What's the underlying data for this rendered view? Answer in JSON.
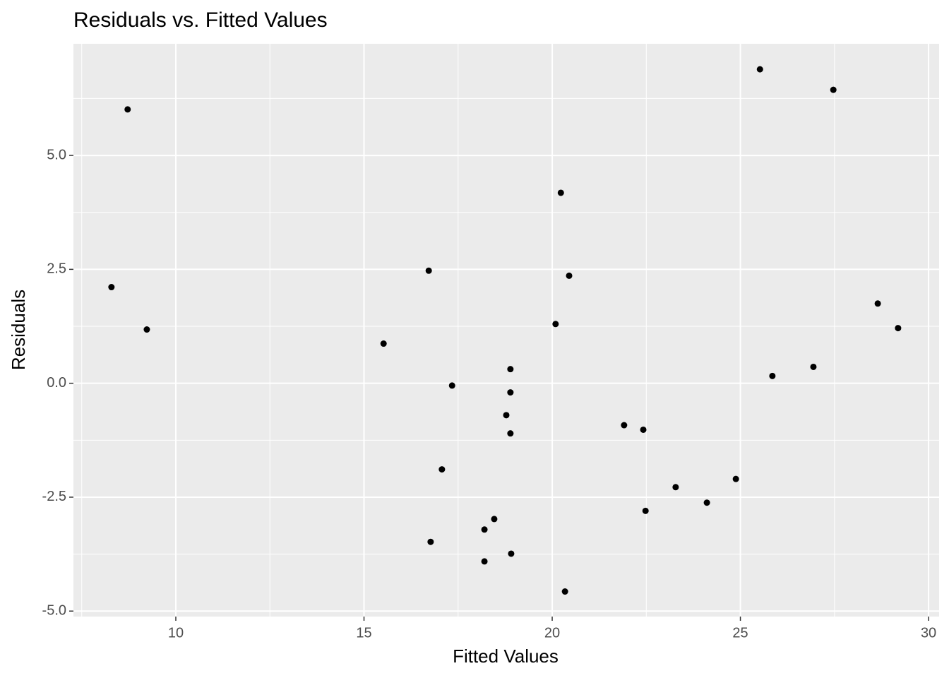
{
  "chart_data": {
    "type": "scatter",
    "title": "Residuals vs. Fitted Values",
    "x_label": "Fitted Values",
    "y_label": "Residuals",
    "color": "#000000",
    "grid": true,
    "xlim": [
      7.28,
      30.28
    ],
    "ylim": [
      -5.12,
      7.45
    ],
    "xticks": [
      10,
      15,
      20,
      25,
      30
    ],
    "yticks": [
      {
        "value": -5,
        "label": "-5.0"
      },
      -2.5,
      {
        "value": 0,
        "label": "0.0"
      },
      2.5,
      {
        "value": 5,
        "label": "5.0"
      }
    ],
    "x": [
      8.29,
      8.72,
      9.23,
      15.52,
      16.72,
      17.34,
      17.07,
      16.77,
      18.2,
      18.2,
      18.46,
      18.78,
      18.89,
      18.89,
      18.89,
      18.91,
      20.09,
      20.23,
      20.45,
      20.34,
      21.91,
      22.42,
      22.48,
      23.28,
      24.11,
      24.88,
      25.52,
      25.85,
      26.94,
      27.47,
      28.65,
      29.19
    ],
    "values": [
      2.11,
      6.01,
      1.18,
      0.87,
      2.47,
      -0.05,
      -1.89,
      -3.48,
      -3.21,
      -3.91,
      -2.98,
      -0.7,
      0.31,
      -0.2,
      -1.1,
      -3.74,
      1.3,
      4.18,
      2.36,
      -4.57,
      -0.92,
      -1.02,
      -2.8,
      -2.28,
      -2.62,
      -2.1,
      6.89,
      0.16,
      0.36,
      6.44,
      1.75,
      1.21
    ]
  }
}
